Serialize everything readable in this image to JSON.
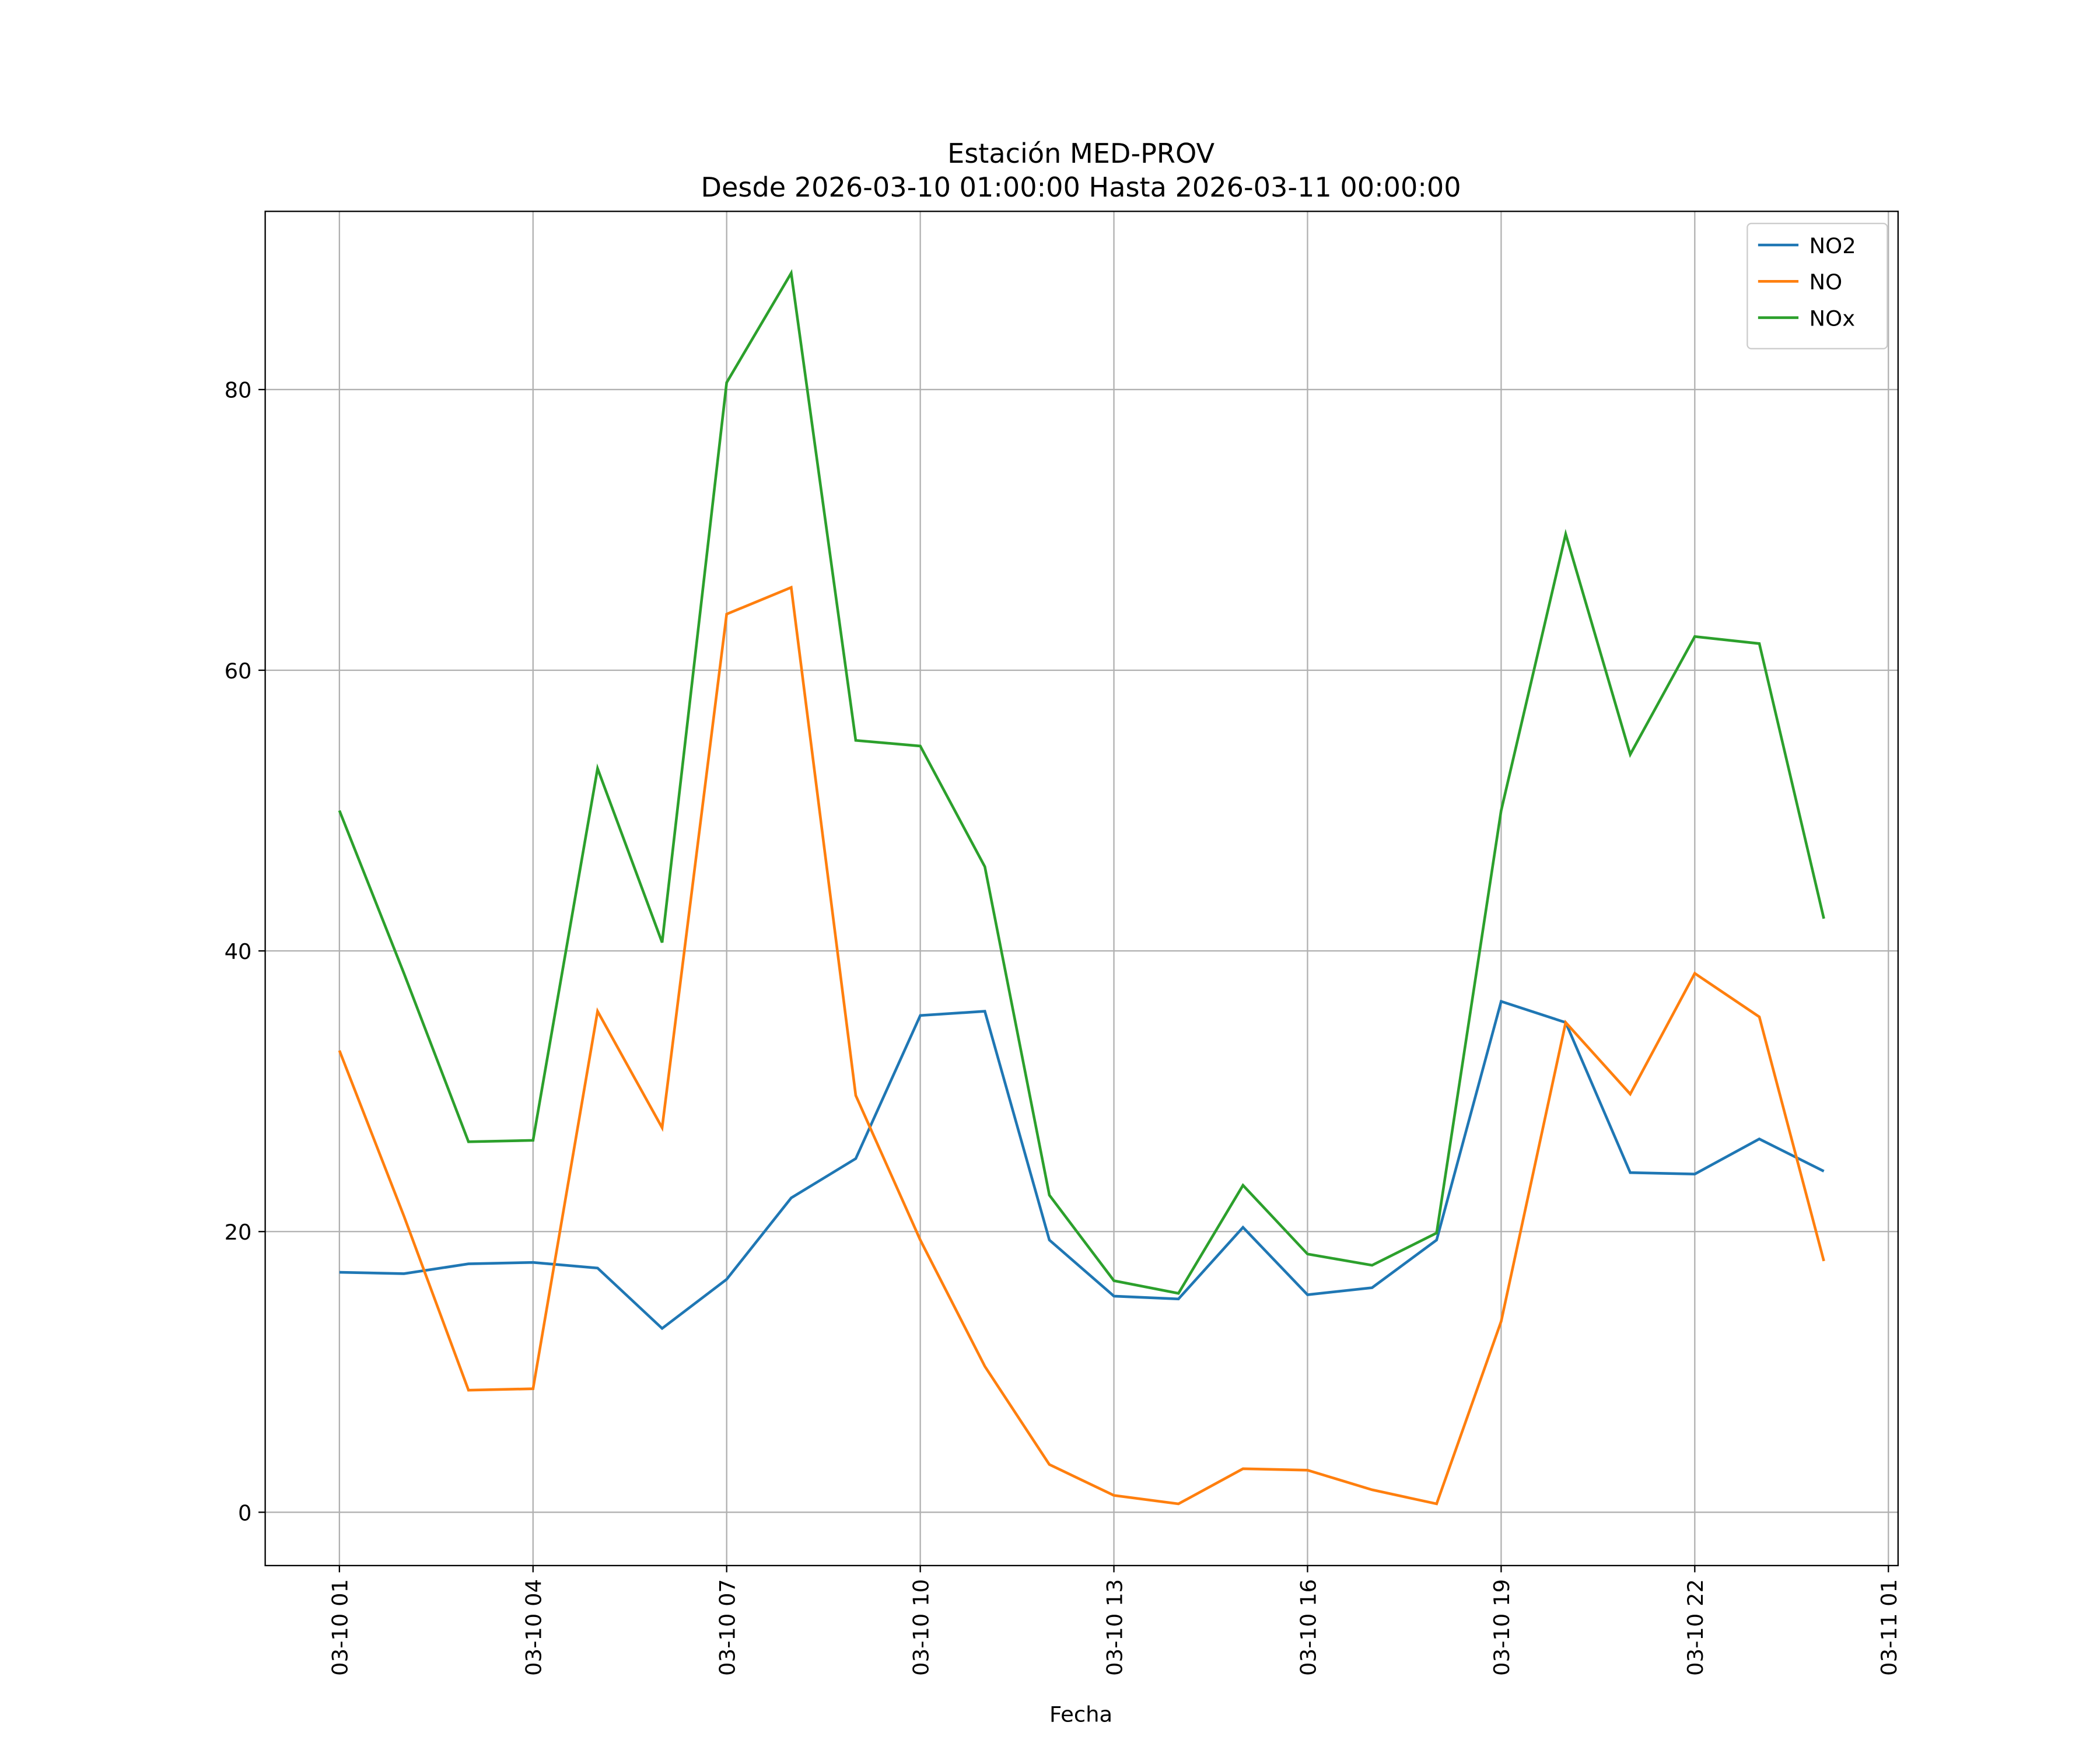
{
  "chart_data": {
    "type": "line",
    "title": "Estación MED-PROV",
    "subtitle": "Desde 2026-03-10 01:00:00 Hasta 2026-03-11 00:00:00",
    "x_label": "Fecha",
    "x": [
      "03-10 01",
      "03-10 02",
      "03-10 03",
      "03-10 04",
      "03-10 05",
      "03-10 06",
      "03-10 07",
      "03-10 08",
      "03-10 09",
      "03-10 10",
      "03-10 11",
      "03-10 12",
      "03-10 13",
      "03-10 14",
      "03-10 15",
      "03-10 16",
      "03-10 17",
      "03-10 18",
      "03-10 19",
      "03-10 20",
      "03-10 21",
      "03-10 22",
      "03-10 23",
      "03-11 00"
    ],
    "series": [
      {
        "name": "NO2",
        "color": "#1f77b4",
        "values": [
          17.1,
          17.0,
          17.7,
          17.8,
          17.4,
          13.1,
          16.6,
          22.4,
          25.2,
          35.4,
          35.7,
          19.4,
          15.4,
          15.2,
          20.3,
          15.5,
          16.0,
          19.4,
          36.4,
          34.9,
          24.2,
          24.1,
          26.6,
          24.3
        ]
      },
      {
        "name": "NO",
        "color": "#ff7f0e",
        "values": [
          32.9,
          21.1,
          8.7,
          8.8,
          35.7,
          27.4,
          64.0,
          65.9,
          29.7,
          19.4,
          10.4,
          3.4,
          1.2,
          0.6,
          3.1,
          3.0,
          1.6,
          0.6,
          13.6,
          34.9,
          29.8,
          38.4,
          35.3,
          17.9
        ]
      },
      {
        "name": "NOx",
        "color": "#2ca02c",
        "values": [
          50.0,
          38.4,
          26.4,
          26.5,
          53.0,
          40.6,
          80.5,
          88.3,
          55.0,
          54.6,
          46.0,
          22.6,
          16.5,
          15.6,
          23.3,
          18.4,
          17.6,
          19.9,
          50.0,
          69.7,
          54.0,
          62.4,
          61.9,
          42.3
        ]
      }
    ],
    "xticks": [
      "03-10 01",
      "03-10 04",
      "03-10 07",
      "03-10 10",
      "03-10 13",
      "03-10 16",
      "03-10 19",
      "03-10 22",
      "03-11 01"
    ],
    "ylim": [
      -3.8,
      92.7
    ],
    "yticks": [
      0,
      20,
      40,
      60,
      80
    ],
    "grid": true,
    "legend": "upper right"
  }
}
